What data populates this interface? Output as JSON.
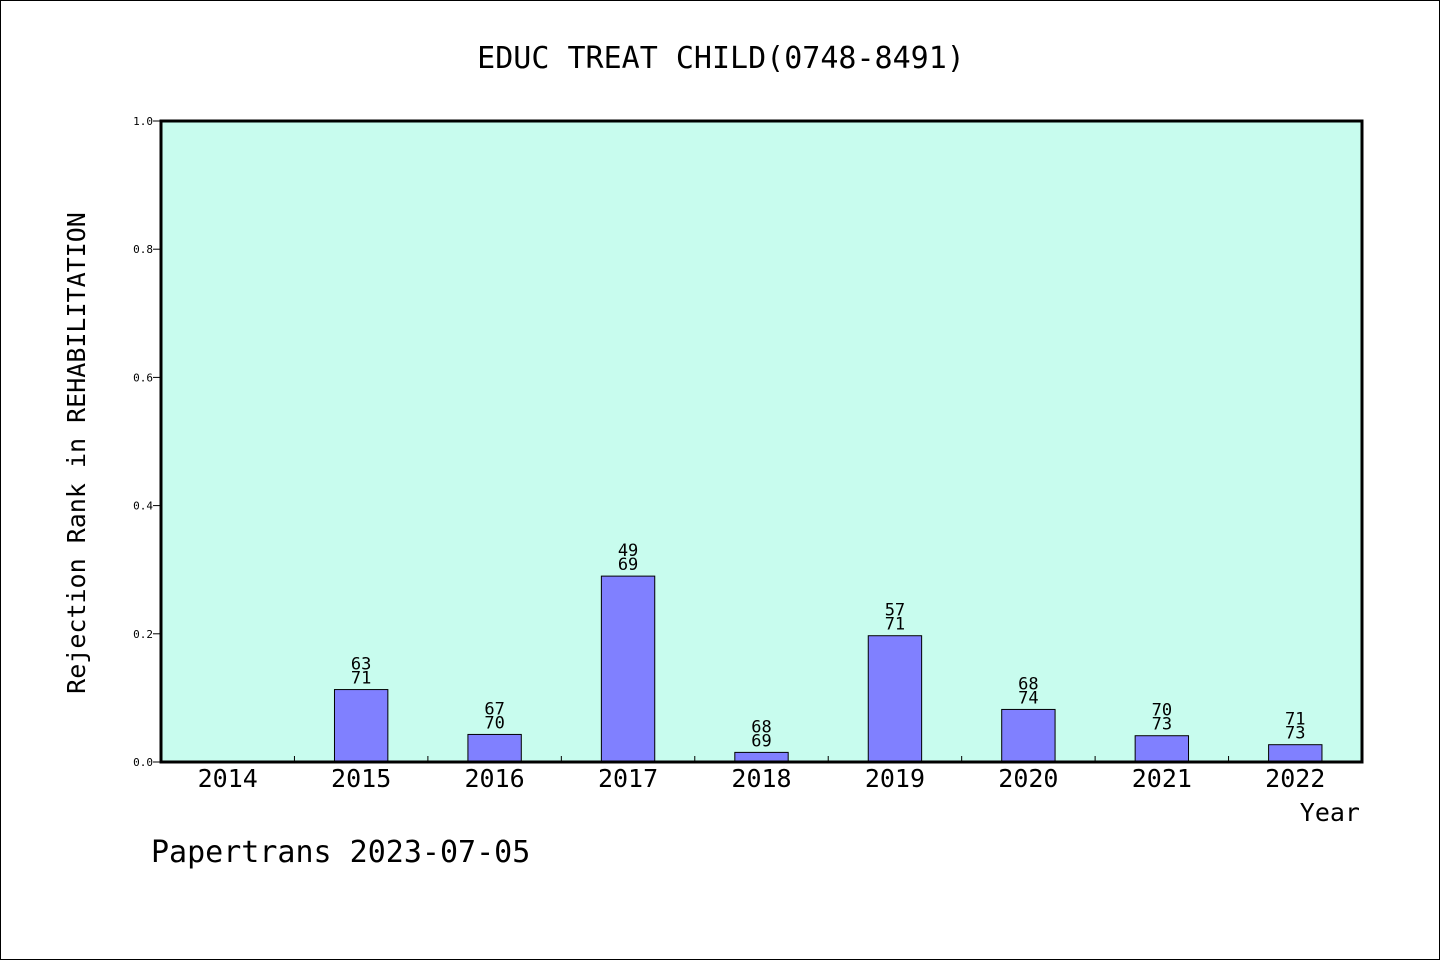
{
  "chart_data": {
    "type": "bar",
    "title": "EDUC TREAT CHILD(0748-8491)",
    "xlabel": "Year",
    "ylabel": "Rejection Rank in REHABILITATION",
    "ylim": [
      0,
      1.0
    ],
    "yticks": [
      "0.0",
      "0.2",
      "0.4",
      "0.6",
      "0.8",
      "1.0"
    ],
    "categories": [
      "2014",
      "2015",
      "2016",
      "2017",
      "2018",
      "2019",
      "2020",
      "2021",
      "2022"
    ],
    "values": [
      0,
      0.113,
      0.043,
      0.29,
      0.015,
      0.197,
      0.082,
      0.041,
      0.027
    ],
    "label_top": [
      "",
      "63",
      "67",
      "49",
      "68",
      "57",
      "68",
      "70",
      "71"
    ],
    "label_bottom": [
      "",
      "71",
      "70",
      "69",
      "69",
      "71",
      "74",
      "73",
      "73"
    ],
    "grid": false,
    "colors": {
      "plot_background": "#c8fcee",
      "bar": "#8080ff",
      "bar_edge": "#000000"
    }
  },
  "footer": {
    "text": "Papertrans 2023-07-05"
  }
}
